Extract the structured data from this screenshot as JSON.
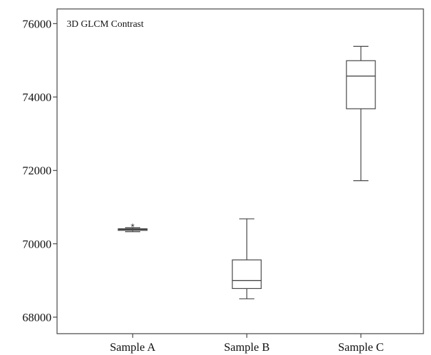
{
  "chart_data": {
    "type": "box",
    "title": "3D GLCM Contrast",
    "xlabel": "",
    "ylabel": "",
    "ylim": [
      67550,
      76400
    ],
    "yticks": [
      68000,
      70000,
      72000,
      74000,
      76000
    ],
    "ytick_labels": [
      "68000",
      "70000",
      "72000",
      "74000",
      "76000"
    ],
    "categories": [
      "Sample A",
      "Sample B",
      "Sample C"
    ],
    "boxes": [
      {
        "min": 70330,
        "q1": 70365,
        "median": 70390,
        "q3": 70410,
        "max": 70440,
        "outliers": [
          70520
        ]
      },
      {
        "min": 68500,
        "q1": 68780,
        "median": 69000,
        "q3": 69560,
        "max": 70680,
        "outliers": []
      },
      {
        "min": 71720,
        "q1": 73680,
        "median": 74570,
        "q3": 74990,
        "max": 75380,
        "outliers": []
      }
    ],
    "grid": false,
    "colors": {
      "box_fill": "#ffffff",
      "box_stroke": "#444444",
      "axis": "#444444"
    }
  }
}
